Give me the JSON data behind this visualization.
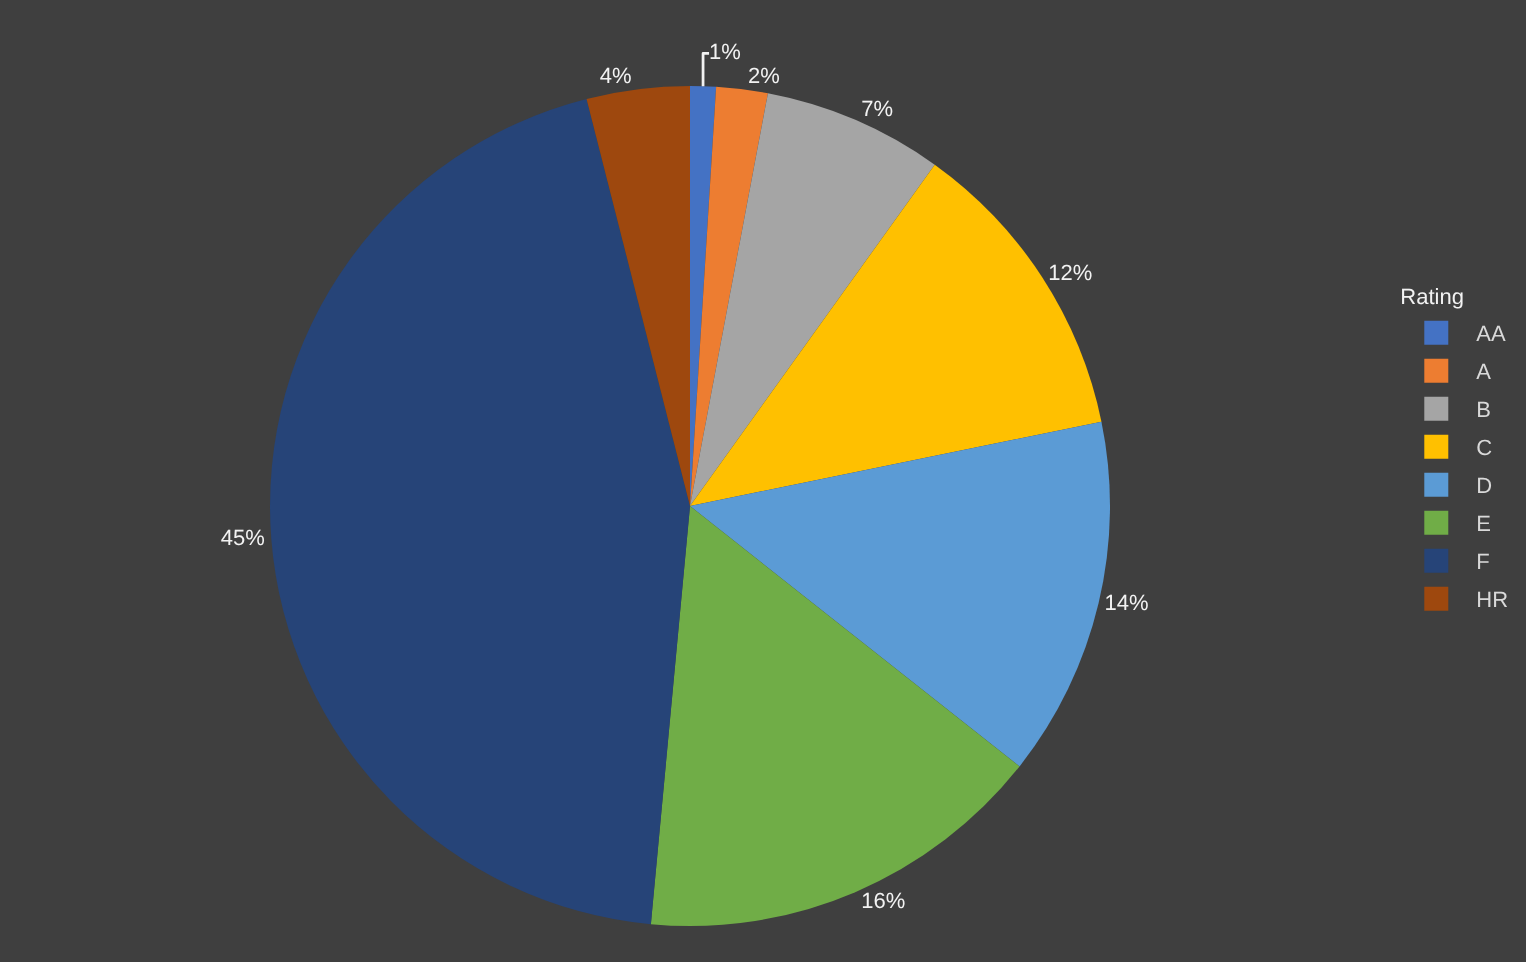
{
  "chart_data": {
    "type": "pie",
    "categories": [
      "AA",
      "A",
      "B",
      "C",
      "D",
      "E",
      "F",
      "HR"
    ],
    "values": [
      1,
      2,
      7,
      12,
      14,
      16,
      45,
      4
    ],
    "colors": [
      "#4472c4",
      "#ed7d31",
      "#a5a5a5",
      "#ffc000",
      "#5b9bd5",
      "#70ad47",
      "#264478",
      "#9e480e"
    ],
    "value_labels": [
      "1%",
      "2%",
      "7%",
      "12%",
      "14%",
      "16%",
      "45%",
      "4%"
    ],
    "legend_title": "Rating",
    "legend": "right"
  }
}
